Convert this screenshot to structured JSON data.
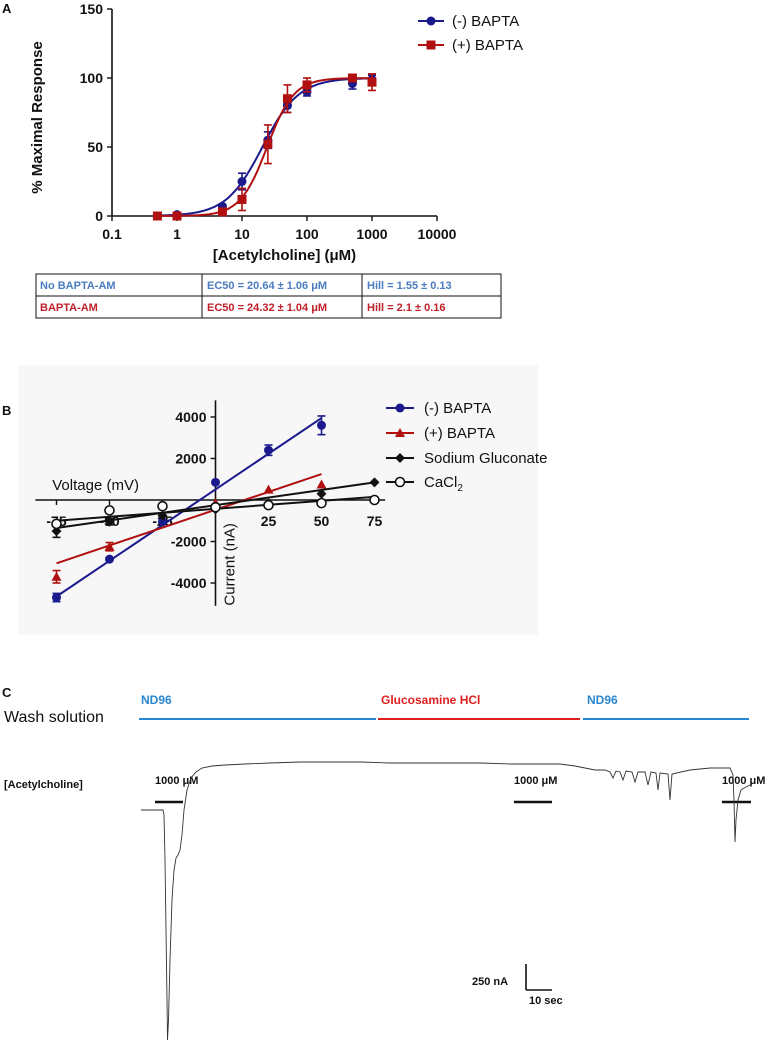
{
  "panel_labels": {
    "a": "A",
    "b": "B",
    "c": "C"
  },
  "colors": {
    "blue": "#1a1a8c",
    "red": "#b01010",
    "black": "#111111",
    "table_blue": "#4a7cc0",
    "table_red": "#c0202a",
    "wash_blue": "#2a86d0",
    "wash_red": "#e02020"
  },
  "chart_data": [
    {
      "type": "scatter",
      "title": "",
      "xlabel": "[Acetylcholine] (μM)",
      "ylabel": "% Maximal Response",
      "xscale": "log",
      "xlim": [
        0.1,
        10000
      ],
      "ylim": [
        0,
        150
      ],
      "xticks": [
        "0.1",
        "1",
        "10",
        "100",
        "1000",
        "10000"
      ],
      "yticks": [
        "0",
        "50",
        "100",
        "150"
      ],
      "legend_position": "top-right",
      "series": [
        {
          "name": "(-) BAPTA",
          "marker": "circle",
          "x": [
            0.5,
            1,
            5,
            10,
            25,
            50,
            100,
            500,
            1000
          ],
          "y": [
            0,
            1,
            7,
            25,
            55,
            80,
            90,
            96,
            99
          ],
          "err": [
            0,
            0,
            1,
            6,
            6,
            5,
            3,
            4,
            3
          ],
          "fit": {
            "ec50": 20.64,
            "hill": 1.55
          }
        },
        {
          "name": "(+) BAPTA",
          "marker": "square",
          "x": [
            0.5,
            1,
            5,
            10,
            25,
            50,
            100,
            500,
            1000
          ],
          "y": [
            0,
            0,
            3,
            12,
            52,
            85,
            95,
            100,
            97
          ],
          "err": [
            0,
            0,
            1,
            8,
            14,
            10,
            5,
            2,
            6
          ],
          "fit": {
            "ec50": 24.32,
            "hill": 2.1
          }
        }
      ]
    },
    {
      "type": "scatter",
      "title": "",
      "xlabel": "Voltage  (mV)",
      "ylabel": "Current  (nA)",
      "xlim": [
        -80,
        80
      ],
      "ylim": [
        -5000,
        5000
      ],
      "xticks": [
        "-75",
        "-50",
        "-25",
        "25",
        "50",
        "75"
      ],
      "yticks": [
        "-4000",
        "-2000",
        "2000",
        "4000"
      ],
      "legend_position": "top-right",
      "series": [
        {
          "name": "(-) BAPTA",
          "marker": "circle-filled",
          "x": [
            -75,
            -50,
            -25,
            0,
            25,
            50
          ],
          "y": [
            -4700,
            -2850,
            -1050,
            850,
            2400,
            3600
          ],
          "err": [
            200,
            0,
            0,
            0,
            250,
            450
          ],
          "fit_line": [
            [
              -75,
              -4650
            ],
            [
              50,
              3950
            ]
          ]
        },
        {
          "name": "(+) BAPTA",
          "marker": "triangle",
          "x": [
            -75,
            -50,
            0,
            25,
            50
          ],
          "y": [
            -3700,
            -2250,
            -150,
            500,
            750
          ],
          "err": [
            300,
            200,
            0,
            0,
            0
          ],
          "fit_line": [
            [
              -75,
              -3050
            ],
            [
              50,
              1250
            ]
          ]
        },
        {
          "name": "Sodium Gluconate",
          "marker": "diamond",
          "x": [
            -75,
            -50,
            -25,
            0,
            25,
            50,
            75
          ],
          "y": [
            -1500,
            -1050,
            -750,
            -450,
            -150,
            300,
            850
          ],
          "err": [
            300,
            150,
            0,
            0,
            0,
            0,
            0
          ],
          "fit_line": [
            [
              -75,
              -1350
            ],
            [
              75,
              850
            ]
          ]
        },
        {
          "name": "CaCl2",
          "marker": "circle-open",
          "x": [
            -75,
            -50,
            -25,
            0,
            25,
            50,
            75
          ],
          "y": [
            -1150,
            -500,
            -300,
            -350,
            -250,
            -150,
            0
          ],
          "err": [
            0,
            0,
            0,
            0,
            0,
            0,
            0
          ],
          "fit_line": [
            [
              -75,
              -1000
            ],
            [
              75,
              150
            ]
          ]
        }
      ]
    }
  ],
  "table": {
    "rows": [
      [
        "No BAPTA-AM",
        "EC50 = 20.64 ± 1.06 μM",
        "Hill = 1.55 ± 0.13"
      ],
      [
        "BAPTA-AM",
        "EC50 = 24.32 ± 1.04 μM",
        "Hill = 2.1 ± 0.16"
      ]
    ]
  },
  "panel_a_legend": {
    "items": [
      "(-) BAPTA",
      "(+) BAPTA"
    ]
  },
  "panel_b_legend": {
    "items": [
      "(-) BAPTA",
      "(+) BAPTA",
      "Sodium Gluconate",
      "CaCl",
      "2"
    ]
  },
  "panel_c": {
    "wash_label": "Wash solution",
    "conditions": [
      "ND96",
      "Glucosamine HCl",
      "ND96"
    ],
    "ach_label": "[Acetylcholine]",
    "doses": [
      "1000 μM",
      "1000 μM",
      "1000 μM"
    ],
    "scale_current": "250 nA",
    "scale_time": "10 sec"
  }
}
